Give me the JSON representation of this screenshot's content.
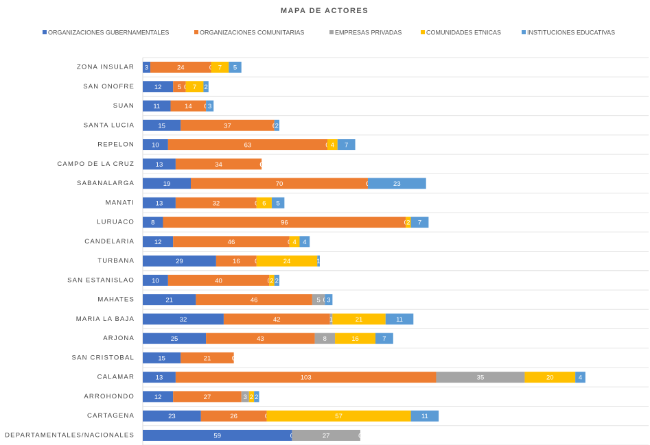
{
  "chart_data": {
    "type": "stacked-bar-horizontal",
    "title": "MAPA DE ACTORES",
    "categories": [
      "ZONA INSULAR",
      "SAN ONOFRE",
      "SUAN",
      "SANTA LUCIA",
      "REPELON",
      "CAMPO DE LA CRUZ",
      "SABANALARGA",
      "MANATI",
      "LURUACO",
      "CANDELARIA",
      "TURBANA",
      "SAN ESTANISLAO",
      "MAHATES",
      "MARIA LA BAJA",
      "ARJONA",
      "SAN CRISTOBAL",
      "CALAMAR",
      "ARROHONDO",
      "CARTAGENA",
      "DEPARTAMENTALES/NACIONALES"
    ],
    "series": [
      {
        "name": "ORGANIZACIONES GUBERNAMENTALES",
        "color": "#4472c4",
        "values": [
          3,
          12,
          11,
          15,
          10,
          13,
          19,
          13,
          8,
          12,
          29,
          10,
          21,
          32,
          25,
          15,
          13,
          12,
          23,
          59
        ]
      },
      {
        "name": "ORGANIZACIONES COMUNITARIAS",
        "color": "#ed7d31",
        "values": [
          24,
          5,
          14,
          37,
          63,
          34,
          70,
          32,
          96,
          46,
          16,
          40,
          46,
          42,
          43,
          21,
          103,
          27,
          26,
          0
        ]
      },
      {
        "name": "EMPRESAS PRIVADAS",
        "color": "#a5a5a5",
        "values": [
          0,
          0,
          0,
          0,
          0,
          0,
          0,
          0,
          0,
          0,
          0,
          0,
          5,
          1,
          8,
          0,
          35,
          3,
          0,
          27
        ]
      },
      {
        "name": "COMUNIDADES ETNICAS",
        "color": "#ffc000",
        "values": [
          7,
          7,
          0,
          0,
          4,
          0,
          0,
          6,
          2,
          4,
          24,
          2,
          0,
          21,
          16,
          0,
          20,
          2,
          57,
          0
        ]
      },
      {
        "name": "INSTITUCIONES EDUCATIVAS",
        "color": "#5b9bd5",
        "values": [
          5,
          2,
          3,
          2,
          7,
          0,
          23,
          5,
          7,
          4,
          1,
          2,
          3,
          11,
          7,
          0,
          4,
          2,
          11,
          0
        ]
      }
    ],
    "xlim": [
      0,
      200
    ]
  }
}
